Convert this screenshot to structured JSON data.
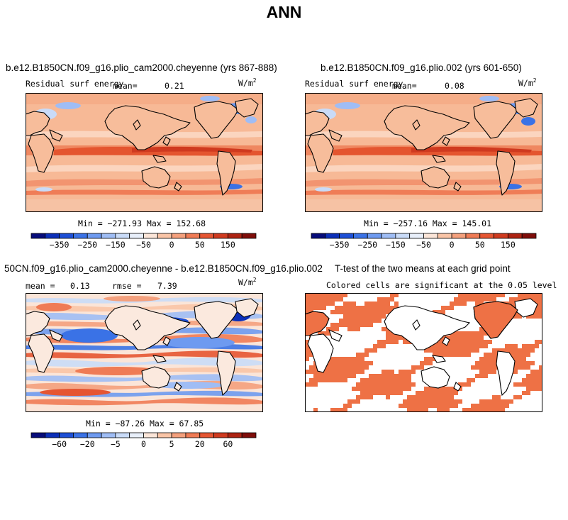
{
  "figure": {
    "title": "ANN"
  },
  "panels": {
    "p1": {
      "title": "b.e12.B1850CN.f09_g16.plio_cam2000.cheyenne (yrs 867-888)",
      "variable": "Residual surf energy",
      "mean_label": "mean=",
      "mean_value": "0.21",
      "units_base": "W/m",
      "units_exp": "2",
      "minmax": "Min = −271.93 Max = 152.68"
    },
    "p2": {
      "title": "b.e12.B1850CN.f09_g16.plio.002 (yrs 601-650)",
      "variable": "Residual surf energy",
      "mean_label": "mean=",
      "mean_value": "0.08",
      "units_base": "W/m",
      "units_exp": "2",
      "minmax": "Min = −257.16 Max = 145.01"
    },
    "p3": {
      "title": "50CN.f09_g16.plio_cam2000.cheyenne - b.e12.B1850CN.f09_g16.plio.002",
      "mean_label": "mean =",
      "mean_value": "0.13",
      "rmse_label": "rmse =",
      "rmse_value": "7.39",
      "units_base": "W/m",
      "units_exp": "2",
      "minmax": "Min = −87.26 Max =  67.85"
    },
    "p4": {
      "title": "T-test of the two means at each grid point",
      "subtitle": "Colored cells are significant at the 0.05 level",
      "significant_color": "#ee7145"
    }
  },
  "colorbars": {
    "abs": {
      "labels": [
        "−350",
        "−250",
        "−150",
        "−50",
        "0",
        "50",
        "150"
      ],
      "colors": [
        "#070c7a",
        "#0c2fb8",
        "#1d4fd6",
        "#3a72e6",
        "#6e9af0",
        "#9fbdf5",
        "#c9dbf8",
        "#e8effa",
        "#fbe5d8",
        "#f9c4a6",
        "#f4a07d",
        "#ef7b55",
        "#e55532",
        "#cf3a1f",
        "#ad2312",
        "#7f0d0a"
      ]
    },
    "diff": {
      "labels": [
        "−60",
        "−20",
        "−5",
        "0",
        "5",
        "20",
        "60"
      ],
      "colors": [
        "#070c7a",
        "#0c2fb8",
        "#1d4fd6",
        "#3a72e6",
        "#6e9af0",
        "#9fbdf5",
        "#c9dbf8",
        "#e8effa",
        "#fbe5d8",
        "#f9c4a6",
        "#f4a07d",
        "#ef7b55",
        "#e55532",
        "#cf3a1f",
        "#ad2312",
        "#7f0d0a"
      ]
    }
  }
}
